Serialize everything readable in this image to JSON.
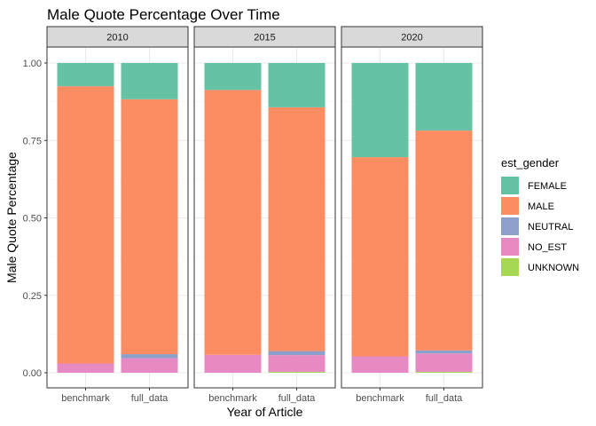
{
  "chart_data": {
    "type": "bar",
    "stacked": true,
    "title": "Male Quote Percentage Over Time",
    "xlabel": "Year of Article",
    "ylabel": "Male Quote Percentage",
    "ylim": [
      0,
      1
    ],
    "y_ticks": [
      "0.00",
      "0.25",
      "0.50",
      "0.75",
      "1.00"
    ],
    "categories": [
      "benchmark",
      "full_data"
    ],
    "grid": true,
    "legend": {
      "title": "est_gender",
      "position": "right",
      "order": [
        "FEMALE",
        "MALE",
        "NEUTRAL",
        "NO_EST",
        "UNKNOWN"
      ]
    },
    "colors": {
      "FEMALE": "#66C2A5",
      "MALE": "#FC8D62",
      "NEUTRAL": "#8DA0CB",
      "NO_EST": "#E78AC3",
      "UNKNOWN": "#A6D854"
    },
    "panels": [
      {
        "facet": "2010",
        "bars": [
          {
            "category": "benchmark",
            "segments": {
              "UNKNOWN": 0.0,
              "NO_EST": 0.03,
              "NEUTRAL": 0.0,
              "MALE": 0.895,
              "FEMALE": 0.075
            }
          },
          {
            "category": "full_data",
            "segments": {
              "UNKNOWN": 0.0,
              "NO_EST": 0.047,
              "NEUTRAL": 0.013,
              "MALE": 0.823,
              "FEMALE": 0.117
            }
          }
        ]
      },
      {
        "facet": "2015",
        "bars": [
          {
            "category": "benchmark",
            "segments": {
              "UNKNOWN": 0.0,
              "NO_EST": 0.058,
              "NEUTRAL": 0.0,
              "MALE": 0.855,
              "FEMALE": 0.087
            }
          },
          {
            "category": "full_data",
            "segments": {
              "UNKNOWN": 0.003,
              "NO_EST": 0.054,
              "NEUTRAL": 0.013,
              "MALE": 0.787,
              "FEMALE": 0.143
            }
          }
        ]
      },
      {
        "facet": "2020",
        "bars": [
          {
            "category": "benchmark",
            "segments": {
              "UNKNOWN": 0.0,
              "NO_EST": 0.053,
              "NEUTRAL": 0.0,
              "MALE": 0.643,
              "FEMALE": 0.304
            }
          },
          {
            "category": "full_data",
            "segments": {
              "UNKNOWN": 0.003,
              "NO_EST": 0.059,
              "NEUTRAL": 0.01,
              "MALE": 0.71,
              "FEMALE": 0.218
            }
          }
        ]
      }
    ]
  }
}
